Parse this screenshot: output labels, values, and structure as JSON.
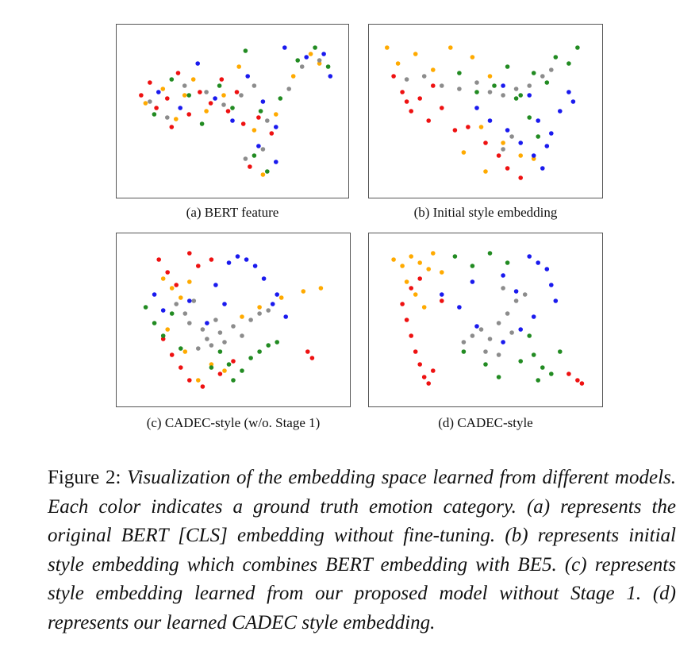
{
  "colors": {
    "red": "#ee1111",
    "orange": "#ffaa00",
    "green": "#228b22",
    "blue": "#1a1aee",
    "gray": "#8c8c8c"
  },
  "chart_data": [
    {
      "type": "scatter",
      "id": "a",
      "title": "(a) BERT feature",
      "xlabel": "",
      "ylabel": "",
      "xlim": [
        0,
        1
      ],
      "ylim": [
        0,
        1
      ],
      "grid": false,
      "series": [
        {
          "name": "red",
          "x": [
            0.08,
            0.12,
            0.15,
            0.2,
            0.25,
            0.3,
            0.35,
            0.4,
            0.48,
            0.55,
            0.62,
            0.68,
            0.22,
            0.45,
            0.52,
            0.58
          ],
          "y": [
            0.6,
            0.68,
            0.52,
            0.58,
            0.74,
            0.48,
            0.62,
            0.55,
            0.5,
            0.42,
            0.46,
            0.36,
            0.4,
            0.7,
            0.62,
            0.15
          ]
        },
        {
          "name": "orange",
          "x": [
            0.1,
            0.18,
            0.24,
            0.32,
            0.38,
            0.46,
            0.53,
            0.6,
            0.7,
            0.78,
            0.86,
            0.9,
            0.28,
            0.64
          ],
          "y": [
            0.55,
            0.64,
            0.45,
            0.7,
            0.5,
            0.6,
            0.78,
            0.38,
            0.48,
            0.72,
            0.86,
            0.8,
            0.6,
            0.1
          ]
        },
        {
          "name": "green",
          "x": [
            0.14,
            0.22,
            0.3,
            0.36,
            0.44,
            0.5,
            0.56,
            0.63,
            0.72,
            0.8,
            0.88,
            0.94,
            0.6,
            0.66
          ],
          "y": [
            0.48,
            0.7,
            0.6,
            0.42,
            0.66,
            0.52,
            0.88,
            0.5,
            0.58,
            0.82,
            0.9,
            0.78,
            0.22,
            0.12
          ]
        },
        {
          "name": "blue",
          "x": [
            0.16,
            0.26,
            0.34,
            0.42,
            0.5,
            0.57,
            0.64,
            0.7,
            0.74,
            0.84,
            0.92,
            0.95,
            0.62,
            0.7
          ],
          "y": [
            0.62,
            0.52,
            0.8,
            0.58,
            0.44,
            0.72,
            0.56,
            0.4,
            0.9,
            0.84,
            0.86,
            0.72,
            0.28,
            0.18
          ]
        },
        {
          "name": "gray",
          "x": [
            0.12,
            0.2,
            0.28,
            0.38,
            0.46,
            0.54,
            0.6,
            0.66,
            0.76,
            0.82,
            0.9,
            0.56,
            0.64
          ],
          "y": [
            0.56,
            0.46,
            0.66,
            0.62,
            0.54,
            0.6,
            0.66,
            0.44,
            0.64,
            0.78,
            0.82,
            0.2,
            0.26
          ]
        }
      ]
    },
    {
      "type": "scatter",
      "id": "b",
      "title": "(b) Initial style embedding",
      "xlabel": "",
      "ylabel": "",
      "xlim": [
        0,
        1
      ],
      "ylim": [
        0,
        1
      ],
      "grid": false,
      "series": [
        {
          "name": "red",
          "x": [
            0.08,
            0.12,
            0.16,
            0.2,
            0.24,
            0.3,
            0.36,
            0.42,
            0.5,
            0.56,
            0.6,
            0.66,
            0.14,
            0.26
          ],
          "y": [
            0.72,
            0.62,
            0.5,
            0.58,
            0.44,
            0.52,
            0.38,
            0.4,
            0.3,
            0.22,
            0.14,
            0.08,
            0.56,
            0.66
          ]
        },
        {
          "name": "orange",
          "x": [
            0.05,
            0.1,
            0.18,
            0.26,
            0.34,
            0.44,
            0.52,
            0.58,
            0.66,
            0.72,
            0.5,
            0.4,
            0.48
          ],
          "y": [
            0.9,
            0.8,
            0.86,
            0.76,
            0.9,
            0.84,
            0.72,
            0.3,
            0.22,
            0.2,
            0.12,
            0.24,
            0.4
          ]
        },
        {
          "name": "green",
          "x": [
            0.38,
            0.46,
            0.54,
            0.6,
            0.66,
            0.72,
            0.78,
            0.82,
            0.88,
            0.92,
            0.7,
            0.74,
            0.64
          ],
          "y": [
            0.74,
            0.62,
            0.66,
            0.78,
            0.6,
            0.74,
            0.68,
            0.84,
            0.8,
            0.9,
            0.46,
            0.34,
            0.58
          ]
        },
        {
          "name": "blue",
          "x": [
            0.46,
            0.52,
            0.6,
            0.66,
            0.72,
            0.76,
            0.8,
            0.84,
            0.88,
            0.9,
            0.7,
            0.74,
            0.78,
            0.58
          ],
          "y": [
            0.52,
            0.44,
            0.38,
            0.3,
            0.22,
            0.14,
            0.36,
            0.5,
            0.62,
            0.56,
            0.6,
            0.44,
            0.28,
            0.66
          ]
        },
        {
          "name": "gray",
          "x": [
            0.14,
            0.22,
            0.3,
            0.38,
            0.46,
            0.52,
            0.58,
            0.64,
            0.7,
            0.76,
            0.8,
            0.62,
            0.58
          ],
          "y": [
            0.7,
            0.72,
            0.66,
            0.64,
            0.68,
            0.62,
            0.6,
            0.64,
            0.66,
            0.72,
            0.76,
            0.34,
            0.26
          ]
        }
      ]
    },
    {
      "type": "scatter",
      "id": "c",
      "title": "(c) CADEC-style (w/o. Stage 1)",
      "xlabel": "",
      "ylabel": "",
      "xlim": [
        0,
        1
      ],
      "ylim": [
        0,
        1
      ],
      "grid": false,
      "series": [
        {
          "name": "red",
          "x": [
            0.16,
            0.2,
            0.24,
            0.3,
            0.34,
            0.4,
            0.18,
            0.22,
            0.26,
            0.3,
            0.36,
            0.44,
            0.5,
            0.84,
            0.86
          ],
          "y": [
            0.88,
            0.8,
            0.72,
            0.92,
            0.84,
            0.88,
            0.38,
            0.28,
            0.2,
            0.12,
            0.08,
            0.16,
            0.24,
            0.3,
            0.26
          ]
        },
        {
          "name": "orange",
          "x": [
            0.18,
            0.22,
            0.26,
            0.3,
            0.2,
            0.28,
            0.34,
            0.4,
            0.46,
            0.54,
            0.62,
            0.72,
            0.82,
            0.9
          ],
          "y": [
            0.76,
            0.7,
            0.64,
            0.74,
            0.44,
            0.3,
            0.12,
            0.22,
            0.18,
            0.52,
            0.58,
            0.64,
            0.68,
            0.7
          ]
        },
        {
          "name": "green",
          "x": [
            0.1,
            0.14,
            0.18,
            0.22,
            0.26,
            0.4,
            0.48,
            0.54,
            0.58,
            0.62,
            0.66,
            0.7,
            0.5,
            0.44
          ],
          "y": [
            0.58,
            0.48,
            0.4,
            0.54,
            0.32,
            0.2,
            0.22,
            0.18,
            0.26,
            0.3,
            0.34,
            0.36,
            0.12,
            0.3
          ]
        },
        {
          "name": "blue",
          "x": [
            0.14,
            0.18,
            0.3,
            0.42,
            0.48,
            0.52,
            0.56,
            0.6,
            0.64,
            0.68,
            0.7,
            0.74,
            0.46,
            0.38
          ],
          "y": [
            0.66,
            0.56,
            0.62,
            0.72,
            0.86,
            0.9,
            0.88,
            0.84,
            0.76,
            0.6,
            0.66,
            0.52,
            0.6,
            0.48
          ]
        },
        {
          "name": "gray",
          "x": [
            0.24,
            0.28,
            0.3,
            0.32,
            0.36,
            0.38,
            0.42,
            0.44,
            0.5,
            0.54,
            0.58,
            0.62,
            0.66,
            0.34,
            0.4,
            0.46
          ],
          "y": [
            0.6,
            0.54,
            0.48,
            0.62,
            0.44,
            0.38,
            0.5,
            0.42,
            0.46,
            0.4,
            0.5,
            0.54,
            0.56,
            0.32,
            0.34,
            0.36
          ]
        }
      ]
    },
    {
      "type": "scatter",
      "id": "d",
      "title": "(d) CADEC-style",
      "xlabel": "",
      "ylabel": "",
      "xlim": [
        0,
        1
      ],
      "ylim": [
        0,
        1
      ],
      "grid": false,
      "series": [
        {
          "name": "red",
          "x": [
            0.12,
            0.14,
            0.16,
            0.18,
            0.2,
            0.22,
            0.24,
            0.26,
            0.16,
            0.2,
            0.3,
            0.92,
            0.94,
            0.88
          ],
          "y": [
            0.6,
            0.5,
            0.4,
            0.3,
            0.22,
            0.14,
            0.1,
            0.18,
            0.7,
            0.76,
            0.62,
            0.12,
            0.1,
            0.16
          ]
        },
        {
          "name": "orange",
          "x": [
            0.08,
            0.12,
            0.16,
            0.2,
            0.24,
            0.26,
            0.3,
            0.14,
            0.18,
            0.22
          ],
          "y": [
            0.88,
            0.84,
            0.9,
            0.86,
            0.82,
            0.92,
            0.8,
            0.74,
            0.66,
            0.58
          ]
        },
        {
          "name": "green",
          "x": [
            0.36,
            0.44,
            0.52,
            0.6,
            0.4,
            0.5,
            0.66,
            0.72,
            0.76,
            0.8,
            0.84,
            0.74,
            0.7,
            0.56
          ],
          "y": [
            0.9,
            0.84,
            0.92,
            0.86,
            0.3,
            0.22,
            0.24,
            0.28,
            0.2,
            0.16,
            0.3,
            0.12,
            0.4,
            0.14
          ]
        },
        {
          "name": "blue",
          "x": [
            0.3,
            0.38,
            0.44,
            0.58,
            0.64,
            0.7,
            0.74,
            0.78,
            0.8,
            0.82,
            0.72,
            0.66,
            0.58,
            0.46
          ],
          "y": [
            0.66,
            0.58,
            0.74,
            0.78,
            0.68,
            0.9,
            0.86,
            0.82,
            0.72,
            0.62,
            0.52,
            0.44,
            0.36,
            0.46
          ]
        },
        {
          "name": "gray",
          "x": [
            0.4,
            0.44,
            0.48,
            0.52,
            0.56,
            0.6,
            0.64,
            0.68,
            0.5,
            0.56,
            0.62,
            0.58
          ],
          "y": [
            0.36,
            0.4,
            0.44,
            0.38,
            0.48,
            0.54,
            0.62,
            0.66,
            0.3,
            0.28,
            0.42,
            0.7
          ]
        }
      ]
    }
  ],
  "figure_caption": {
    "label": "Figure 2:",
    "text": "Visualization of the embedding space learned from different models. Each color indicates a ground truth emotion category. (a) represents the original BERT [CLS] embedding without fine-tuning. (b) represents initial style embedding which combines BERT embedding with BE5. (c) represents style embedding learned from our proposed model without Stage 1. (d) represents our learned CADEC style embedding."
  }
}
